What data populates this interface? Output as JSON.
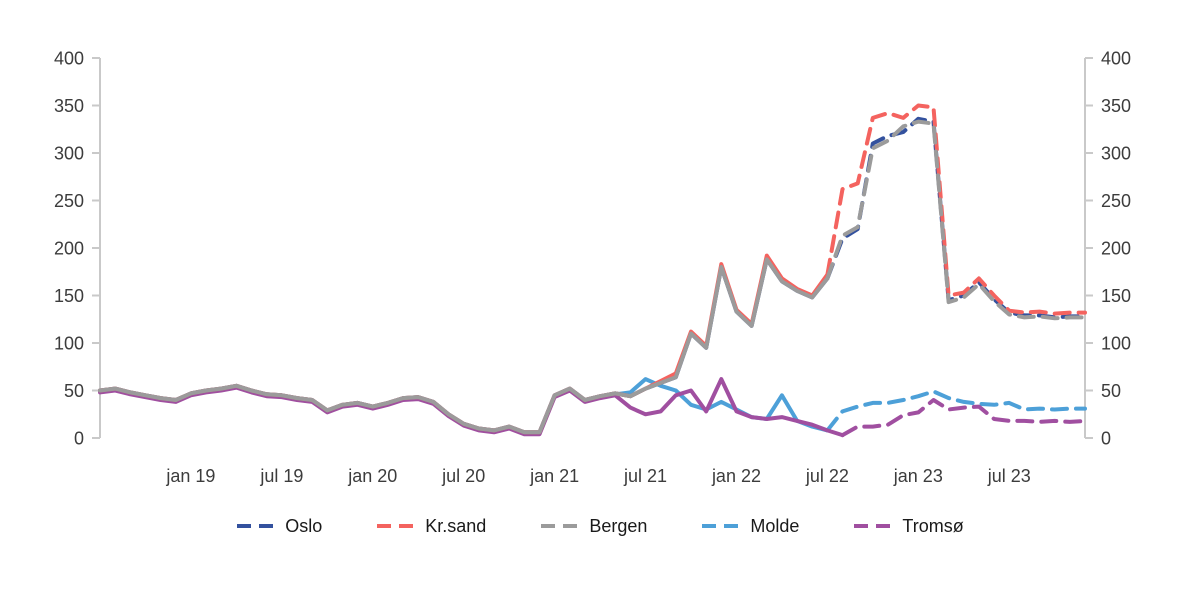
{
  "style": {
    "axis_color": "#C9C9C9",
    "tick_text_color": "#3C3C3C",
    "background": "#FFFFFF"
  },
  "chart_data": {
    "type": "line",
    "title": "",
    "xlabel": "",
    "ylabel": "",
    "ylim": [
      0,
      400
    ],
    "grid": false,
    "legend_position": "bottom",
    "y_ticks": [
      0,
      50,
      100,
      150,
      200,
      250,
      300,
      350,
      400
    ],
    "x": [
      "jul 18",
      "aug 18",
      "sep 18",
      "okt 18",
      "nov 18",
      "des 18",
      "jan 19",
      "feb 19",
      "mar 19",
      "apr 19",
      "mai 19",
      "jun 19",
      "jul 19",
      "aug 19",
      "sep 19",
      "okt 19",
      "nov 19",
      "des 19",
      "jan 20",
      "feb 20",
      "mar 20",
      "apr 20",
      "mai 20",
      "jun 20",
      "jul 20",
      "aug 20",
      "sep 20",
      "okt 20",
      "nov 20",
      "des 20",
      "jan 21",
      "feb 21",
      "mar 21",
      "apr 21",
      "mai 21",
      "jun 21",
      "jul 21",
      "aug 21",
      "sep 21",
      "okt 21",
      "nov 21",
      "des 21",
      "jan 22",
      "feb 22",
      "mar 22",
      "apr 22",
      "mai 22",
      "jun 22",
      "jul 22",
      "aug 22",
      "sep 22",
      "okt 22",
      "nov 22",
      "des 22",
      "jan 23",
      "feb 23",
      "mar 23",
      "apr 23",
      "mai 23",
      "jun 23",
      "jul 23",
      "aug 23",
      "sep 23",
      "okt 23",
      "nov 23",
      "des 23"
    ],
    "x_tick_labels": [
      "jan 19",
      "jul 19",
      "jan 20",
      "jul 20",
      "jan 21",
      "jul 21",
      "jan 22",
      "jul 22",
      "jan 23",
      "jul 23"
    ],
    "x_tick_indices": [
      6,
      12,
      18,
      24,
      30,
      36,
      42,
      48,
      54,
      60
    ],
    "dash_note": "values from dash_from index onward are drawn with dashed strokes",
    "series": [
      {
        "name": "Oslo",
        "color": "#33519E",
        "dash_from": 48,
        "values": [
          50,
          52,
          48,
          45,
          42,
          40,
          47,
          50,
          52,
          55,
          50,
          46,
          45,
          42,
          40,
          29,
          35,
          37,
          33,
          37,
          42,
          43,
          38,
          25,
          15,
          10,
          8,
          12,
          6,
          6,
          45,
          52,
          40,
          44,
          47,
          44,
          52,
          58,
          64,
          110,
          95,
          180,
          133,
          118,
          188,
          165,
          155,
          148,
          168,
          210,
          220,
          310,
          318,
          322,
          336,
          333,
          145,
          150,
          164,
          146,
          132,
          129,
          129,
          127,
          128,
          128
        ]
      },
      {
        "name": "Kr.sand",
        "color": "#F4635F",
        "dash_from": 48,
        "values": [
          50,
          52,
          48,
          45,
          42,
          40,
          47,
          50,
          52,
          55,
          50,
          46,
          45,
          42,
          40,
          29,
          35,
          37,
          33,
          37,
          42,
          43,
          38,
          25,
          15,
          10,
          8,
          12,
          6,
          6,
          45,
          52,
          40,
          44,
          47,
          44,
          52,
          60,
          68,
          112,
          97,
          183,
          135,
          120,
          192,
          168,
          157,
          150,
          172,
          262,
          268,
          337,
          342,
          337,
          350,
          348,
          150,
          153,
          168,
          150,
          134,
          132,
          133,
          131,
          132,
          132
        ]
      },
      {
        "name": "Bergen",
        "color": "#9B9B9B",
        "dash_from": 48,
        "values": [
          50,
          52,
          48,
          45,
          42,
          40,
          47,
          50,
          52,
          55,
          50,
          46,
          45,
          42,
          40,
          29,
          35,
          37,
          33,
          37,
          42,
          43,
          38,
          25,
          15,
          10,
          8,
          12,
          6,
          6,
          45,
          52,
          40,
          44,
          47,
          44,
          52,
          58,
          64,
          110,
          95,
          180,
          133,
          118,
          188,
          165,
          155,
          148,
          168,
          213,
          222,
          305,
          313,
          328,
          333,
          331,
          143,
          148,
          162,
          144,
          130,
          127,
          128,
          126,
          127,
          127
        ]
      },
      {
        "name": "Molde",
        "color": "#4DA0D8",
        "dash_from": 48,
        "values": [
          49,
          51,
          47,
          44,
          41,
          39,
          46,
          49,
          51,
          54,
          49,
          45,
          44,
          41,
          39,
          28,
          34,
          36,
          32,
          36,
          41,
          42,
          37,
          24,
          14,
          9,
          7,
          11,
          5,
          5,
          44,
          51,
          39,
          43,
          46,
          48,
          62,
          55,
          50,
          35,
          30,
          38,
          30,
          22,
          20,
          45,
          18,
          12,
          8,
          28,
          33,
          37,
          37,
          40,
          44,
          49,
          42,
          38,
          36,
          35,
          37,
          30,
          31,
          30,
          31,
          31
        ]
      },
      {
        "name": "Tromsø",
        "color": "#A04FA0",
        "dash_from": 49,
        "values": [
          48,
          50,
          46,
          43,
          40,
          38,
          45,
          48,
          50,
          53,
          48,
          44,
          43,
          40,
          38,
          27,
          33,
          35,
          31,
          35,
          40,
          41,
          36,
          23,
          13,
          8,
          6,
          10,
          4,
          4,
          43,
          50,
          38,
          42,
          45,
          32,
          25,
          28,
          45,
          50,
          28,
          62,
          28,
          22,
          20,
          22,
          18,
          14,
          8,
          3,
          12,
          12,
          14,
          24,
          27,
          40,
          30,
          32,
          33,
          20,
          18,
          18,
          17,
          18,
          17,
          18
        ]
      }
    ]
  }
}
